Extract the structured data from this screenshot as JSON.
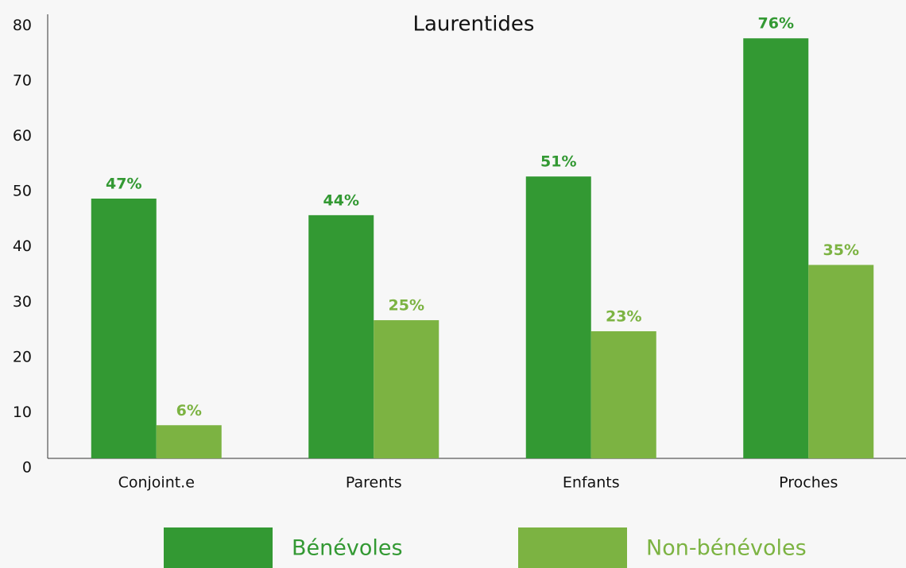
{
  "chart_data": {
    "type": "bar",
    "title": "Laurentides",
    "categories": [
      "Conjoint.e",
      "Parents",
      "Enfants",
      "Proches"
    ],
    "series": [
      {
        "name": "Bénévoles",
        "color": "#339933",
        "values": [
          47,
          44,
          51,
          76
        ],
        "value_labels": [
          "47%",
          "44%",
          "51%",
          "76%"
        ]
      },
      {
        "name": "Non-bénévoles",
        "color": "#7cb342",
        "values": [
          6,
          25,
          23,
          35
        ],
        "value_labels": [
          "6%",
          "25%",
          "23%",
          "35%"
        ]
      }
    ],
    "ylim": [
      0,
      80
    ],
    "yticks": [
      0,
      10,
      20,
      30,
      40,
      50,
      60,
      70,
      80
    ],
    "grid": false
  }
}
